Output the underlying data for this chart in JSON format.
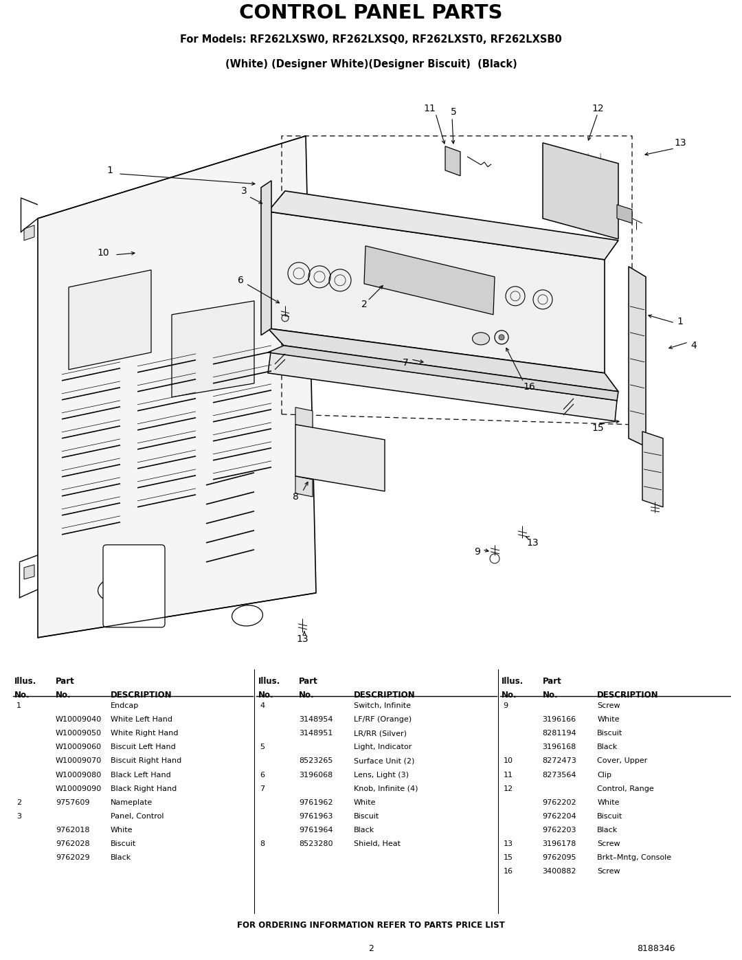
{
  "title": "CONTROL PANEL PARTS",
  "subtitle1": "For Models: RF262LXSW0, RF262LXSQ0, RF262LXST0, RF262LXSB0",
  "subtitle2": "(White) (Designer White)(Designer Biscuit)  (Black)",
  "bg_color": "#ffffff",
  "col1_rows": [
    [
      "1",
      "",
      "Endcap"
    ],
    [
      "",
      "W10009040",
      "White Left Hand"
    ],
    [
      "",
      "W10009050",
      "White Right Hand"
    ],
    [
      "",
      "W10009060",
      "Biscuit Left Hand"
    ],
    [
      "",
      "W10009070",
      "Biscuit Right Hand"
    ],
    [
      "",
      "W10009080",
      "Black Left Hand"
    ],
    [
      "",
      "W10009090",
      "Black Right Hand"
    ],
    [
      "2",
      "9757609",
      "Nameplate"
    ],
    [
      "3",
      "",
      "Panel, Control"
    ],
    [
      "",
      "9762018",
      "White"
    ],
    [
      "",
      "9762028",
      "Biscuit"
    ],
    [
      "",
      "9762029",
      "Black"
    ]
  ],
  "col2_rows": [
    [
      "4",
      "",
      "Switch, Infinite"
    ],
    [
      "",
      "3148954",
      "LF/RF (Orange)"
    ],
    [
      "",
      "3148951",
      "LR/RR (Silver)"
    ],
    [
      "5",
      "",
      "Light, Indicator"
    ],
    [
      "",
      "8523265",
      "Surface Unit (2)"
    ],
    [
      "6",
      "3196068",
      "Lens, Light (3)"
    ],
    [
      "7",
      "",
      "Knob, Infinite (4)"
    ],
    [
      "",
      "9761962",
      "White"
    ],
    [
      "",
      "9761963",
      "Biscuit"
    ],
    [
      "",
      "9761964",
      "Black"
    ],
    [
      "8",
      "8523280",
      "Shield, Heat"
    ]
  ],
  "col3_rows": [
    [
      "9",
      "",
      "Screw"
    ],
    [
      "",
      "3196166",
      "White"
    ],
    [
      "",
      "8281194",
      "Biscuit"
    ],
    [
      "",
      "3196168",
      "Black"
    ],
    [
      "10",
      "8272473",
      "Cover, Upper"
    ],
    [
      "11",
      "8273564",
      "Clip"
    ],
    [
      "12",
      "",
      "Control, Range"
    ],
    [
      "",
      "9762202",
      "White"
    ],
    [
      "",
      "9762204",
      "Biscuit"
    ],
    [
      "",
      "9762203",
      "Black"
    ],
    [
      "13",
      "3196178",
      "Screw"
    ],
    [
      "15",
      "9762095",
      "Brkt–Mntg, Console"
    ],
    [
      "16",
      "3400882",
      "Screw"
    ]
  ],
  "footer_note": "FOR ORDERING INFORMATION REFER TO PARTS PRICE LIST",
  "page_num": "2",
  "doc_num": "8188346"
}
